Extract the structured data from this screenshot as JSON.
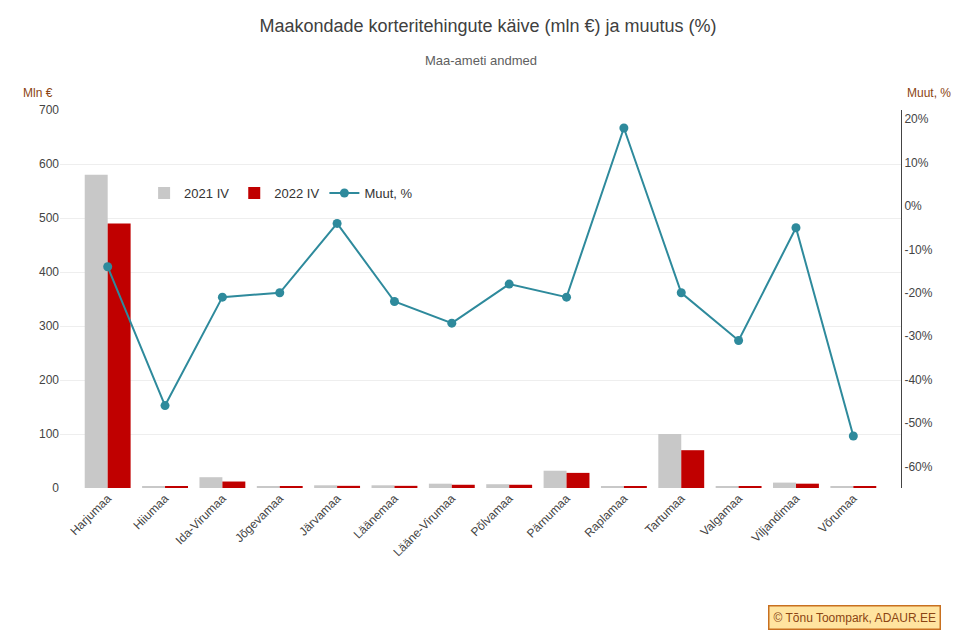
{
  "chart_data": {
    "type": "bar",
    "title": "Maakondade korteritehingute käive (mln €) ja muutus (%)",
    "subtitle": "Maa-ameti andmed",
    "ylabel": "Mln €",
    "y2label": "Muut, %",
    "categories": [
      "Harjumaa",
      "Hiiumaa",
      "Ida-Virumaa",
      "Jõgevamaa",
      "Järvamaa",
      "Läänemaa",
      "Lääne-Virumaa",
      "Põlvamaa",
      "Pärnumaa",
      "Raplamaa",
      "Tartumaa",
      "Valgamaa",
      "Viljandimaa",
      "Võrumaa"
    ],
    "series": [
      {
        "name": "2021 IV",
        "type": "bar",
        "color": "#c8c8c8",
        "values": [
          580,
          2,
          20,
          3,
          5,
          5,
          8,
          7,
          32,
          3,
          100,
          3,
          10,
          3
        ]
      },
      {
        "name": "2022 IV",
        "type": "bar",
        "color": "#c00000",
        "values": [
          490,
          2,
          12,
          2,
          4,
          4,
          6,
          6,
          28,
          2,
          70,
          2,
          8,
          2
        ]
      },
      {
        "name": "Muut, %",
        "type": "line",
        "axis": "y2",
        "color": "#2e8a9c",
        "marker": "circle",
        "values": [
          -14,
          -46,
          -21,
          -20,
          -4,
          -22,
          -27,
          -18,
          -21,
          18,
          -20,
          -31,
          -5,
          -53
        ]
      }
    ],
    "ylim": [
      0,
      700
    ],
    "yticks": [
      0,
      100,
      200,
      300,
      400,
      500,
      600,
      700
    ],
    "y2lim": [
      -65,
      22.14
    ],
    "y2ticks": [
      {
        "value": 20,
        "label": "20%"
      },
      {
        "value": 10,
        "label": "10%"
      },
      {
        "value": 0,
        "label": "0%"
      },
      {
        "value": -10,
        "label": "-10%"
      },
      {
        "value": -20,
        "label": "-20%"
      },
      {
        "value": -30,
        "label": "-30%"
      },
      {
        "value": -40,
        "label": "-40%"
      },
      {
        "value": -50,
        "label": "-50%"
      },
      {
        "value": -60,
        "label": "-60%"
      }
    ],
    "grid": true,
    "legend": "upper left",
    "annotations": [
      "© Tõnu Toompark, ADAUR.EE"
    ]
  }
}
